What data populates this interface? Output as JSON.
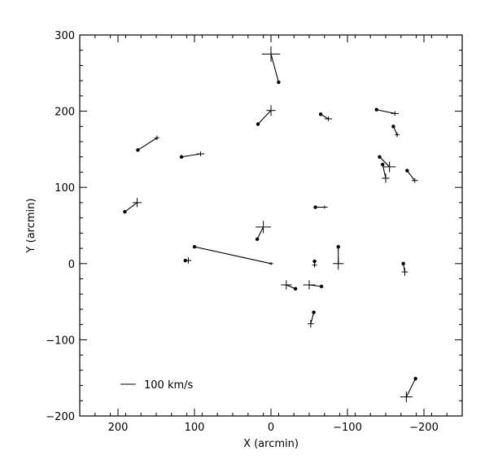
{
  "chart_data": {
    "type": "scatter",
    "title": "",
    "xlabel": "X (arcmin)",
    "ylabel": "Y (arcmin)",
    "xlim": [
      250,
      -250
    ],
    "ylim": [
      -200,
      300
    ],
    "x_ticks": [
      200,
      100,
      0,
      -100,
      -200
    ],
    "x_tick_labels": [
      "200",
      "100",
      "0",
      "−100",
      "−200"
    ],
    "y_ticks": [
      -200,
      -100,
      0,
      100,
      200,
      300
    ],
    "y_tick_labels": [
      "−200",
      "−100",
      "0",
      "100",
      "200",
      "300"
    ],
    "grid": false,
    "legend": {
      "label": "100 km/s",
      "placement": "bottom-left",
      "scale_arcmin": 20
    },
    "vectors": [
      {
        "x": 0,
        "y": 275,
        "tx": -10,
        "ty": 238,
        "ex": 12,
        "ey": 10
      },
      {
        "x": 0,
        "y": 201,
        "tx": 17,
        "ty": 183,
        "ex": 6,
        "ey": 7
      },
      {
        "x": 149,
        "y": 165,
        "tx": 174,
        "ty": 149,
        "ex": 3,
        "ey": 3
      },
      {
        "x": 92,
        "y": 144,
        "tx": 117,
        "ty": 140,
        "ex": 5,
        "ey": 3
      },
      {
        "x": 175,
        "y": 80,
        "tx": 191,
        "ty": 68,
        "ex": 6,
        "ey": 6
      },
      {
        "x": -75,
        "y": 190,
        "tx": -65,
        "ty": 196,
        "ex": 5,
        "ey": 3
      },
      {
        "x": -162,
        "y": 197,
        "tx": -138,
        "ty": 202,
        "ex": 5,
        "ey": 3
      },
      {
        "x": -165,
        "y": 169,
        "tx": -160,
        "ty": 180,
        "ex": 3,
        "ey": 3
      },
      {
        "x": -155,
        "y": 127,
        "tx": -142,
        "ty": 140,
        "ex": 8,
        "ey": 7
      },
      {
        "x": -150,
        "y": 112,
        "tx": -146,
        "ty": 130,
        "ex": 5,
        "ey": 6
      },
      {
        "x": -188,
        "y": 109,
        "tx": -178,
        "ty": 122,
        "ex": 4,
        "ey": 3
      },
      {
        "x": -70,
        "y": 74,
        "tx": -58,
        "ty": 74,
        "ex": 4,
        "ey": 2
      },
      {
        "x": 10,
        "y": 48,
        "tx": 18,
        "ty": 32,
        "ex": 10,
        "ey": 8
      },
      {
        "x": 0,
        "y": 0,
        "tx": 100,
        "ty": 22,
        "ex": 3,
        "ey": 2
      },
      {
        "x": 108,
        "y": 4,
        "tx": 112,
        "ty": 4,
        "ex": 4,
        "ey": 4
      },
      {
        "x": -57,
        "y": -2,
        "tx": -57,
        "ty": 3,
        "ex": 3,
        "ey": 3
      },
      {
        "x": -88,
        "y": 0,
        "tx": -88,
        "ty": 22,
        "ex": 7,
        "ey": 8
      },
      {
        "x": -20,
        "y": -28,
        "tx": -32,
        "ty": -33,
        "ex": 7,
        "ey": 6
      },
      {
        "x": -50,
        "y": -28,
        "tx": -66,
        "ty": -30,
        "ex": 8,
        "ey": 6
      },
      {
        "x": -52,
        "y": -79,
        "tx": -56,
        "ty": -64,
        "ex": 4,
        "ey": 5
      },
      {
        "x": -175,
        "y": -11,
        "tx": -173,
        "ty": 0,
        "ex": 4,
        "ey": 5
      },
      {
        "x": -177,
        "y": -175,
        "tx": -189,
        "ty": -151,
        "ex": 8,
        "ey": 7
      }
    ]
  }
}
